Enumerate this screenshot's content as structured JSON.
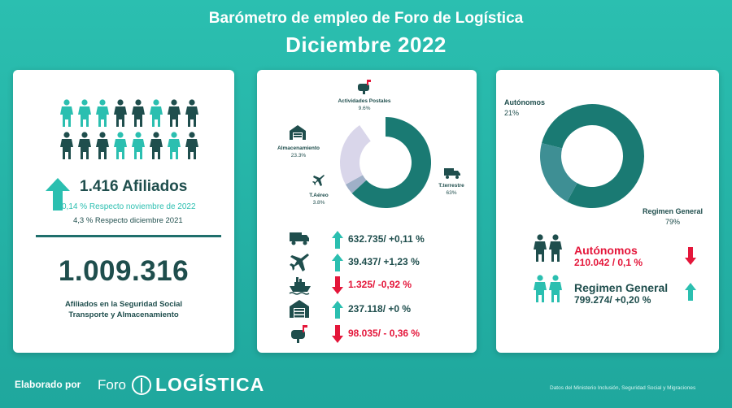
{
  "header": {
    "title": "Barómetro de empleo de Foro de Logística",
    "subtitle": "Diciembre  2022"
  },
  "afiliados": {
    "value": "1.416  Afiliados",
    "vs_month": "0,14 % Respecto noviembre de 2022",
    "vs_year": "4,3  % Respecto diciembre 2021",
    "total": "1.009.316",
    "total_caption_1": "Afiliados en la Seguridad Social",
    "total_caption_2": "Transporte y Almacenamiento",
    "people_colors": [
      "#2bbfb0",
      "#2bbfb0",
      "#2bbfb0",
      "#1f4e4d",
      "#1f4e4d",
      "#2bbfb0",
      "#1f4e4d",
      "#1f4e4d",
      "#1f4e4d",
      "#1f4e4d",
      "#1f4e4d",
      "#2bbfb0",
      "#2bbfb0",
      "#1f4e4d",
      "#2bbfb0",
      "#1f4e4d"
    ]
  },
  "sectores": {
    "chart": [
      {
        "name": "T.terrestre",
        "pct_label": "63%",
        "value": 63,
        "color": "#1a7a73"
      },
      {
        "name": "T.Aéreo",
        "pct_label": "3.8%",
        "value": 3.8,
        "color": "#9fb0c8"
      },
      {
        "name": "Almacenamiento",
        "pct_label": "23.3%",
        "value": 23.3,
        "color": "#d9d6ea"
      },
      {
        "name": "Actividades Postales",
        "pct_label": "9.6%",
        "value": 9.6,
        "color": "#ffffff"
      }
    ],
    "rows": [
      {
        "icon": "truck-icon",
        "dir": "up",
        "text": "632.735/ +0,11 %"
      },
      {
        "icon": "airplane-icon",
        "dir": "up",
        "text": "39.437/ +1,23 %"
      },
      {
        "icon": "ship-icon",
        "dir": "down",
        "text": "1.325/ -0,92 %"
      },
      {
        "icon": "warehouse-icon",
        "dir": "up",
        "text": "237.118/ +0 %"
      },
      {
        "icon": "mailbox-icon",
        "dir": "down",
        "text": "98.035/ - 0,36 %"
      }
    ]
  },
  "regimen": {
    "chart": [
      {
        "name": "Regimen General",
        "pct_label": "79%",
        "value": 79,
        "color": "#1a7a73"
      },
      {
        "name": "Autónomos",
        "pct_label": "21%",
        "value": 21,
        "color": "#3e8f94"
      }
    ],
    "autonomos_name": "Autónomos",
    "autonomos_value": "210.042 / 0,1 %",
    "general_name": "Regimen General",
    "general_value": "799.274/ +0,20 %"
  },
  "footer": {
    "elaborado": "Elaborado por",
    "brand_foro": "Foro",
    "brand_logistica": "LOGÍSTICA",
    "source": "Datos del Ministerio Inclusión, Seguridad Social y Migraciones"
  },
  "colors": {
    "background": "#2bbfb0",
    "dark_teal": "#1f4e4d",
    "accent": "#2bbfb0",
    "negative": "#e4163a"
  }
}
